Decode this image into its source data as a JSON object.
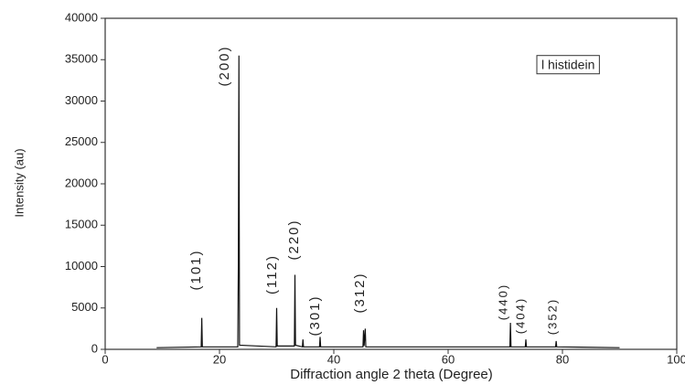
{
  "chart_data": {
    "type": "line",
    "xlabel": "Diffraction angle 2  theta (Degree)",
    "ylabel": "Intensity (au)",
    "xlim": [
      0,
      100
    ],
    "xticks": [
      0,
      20,
      40,
      60,
      80,
      100
    ],
    "ylim": [
      0,
      40000
    ],
    "yticks": [
      0,
      5000,
      10000,
      15000,
      20000,
      25000,
      30000,
      35000,
      40000
    ],
    "legend": "upper right",
    "annotations": [
      "(101)",
      "(200)",
      "(112)",
      "(220)",
      "(301)",
      "(312)",
      "(440)",
      "(404)",
      "(352)"
    ],
    "series": [
      {
        "name": "l histidein",
        "color": "#111111",
        "x": [
          9,
          16.8,
          16.9,
          17.0,
          23.2,
          23.3,
          23.4,
          23.5,
          29.9,
          30.0,
          30.1,
          33.1,
          33.2,
          33.3,
          34.5,
          34.6,
          34.7,
          37.5,
          37.6,
          37.7,
          45.1,
          45.2,
          45.3,
          45.5,
          45.6,
          70.8,
          70.9,
          71.0,
          73.5,
          73.6,
          73.7,
          78.8,
          78.9,
          79.0,
          90
        ],
        "values": [
          200,
          300,
          3800,
          300,
          300,
          10500,
          35500,
          500,
          300,
          5000,
          400,
          400,
          9000,
          500,
          300,
          1200,
          300,
          300,
          1500,
          300,
          300,
          2300,
          400,
          2500,
          300,
          300,
          3200,
          300,
          300,
          1200,
          300,
          300,
          1000,
          300,
          200
        ]
      }
    ]
  }
}
